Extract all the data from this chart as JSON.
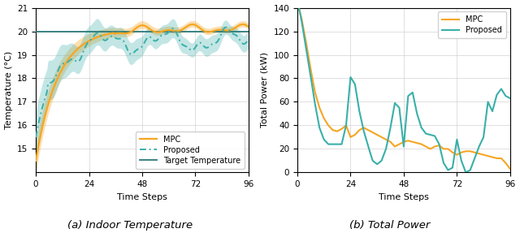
{
  "left_title": "(a) Indoor Temperature",
  "right_title": "(b) Total Power",
  "left_xlabel": "Time Steps",
  "left_ylabel": "Temperature (°C)",
  "right_xlabel": "Time Steps",
  "right_ylabel": "Total Power (kW)",
  "xticks": [
    0,
    24,
    48,
    72,
    96
  ],
  "left_ylim": [
    14,
    21
  ],
  "right_ylim": [
    0,
    140
  ],
  "left_yticks": [
    15,
    16,
    17,
    18,
    19,
    20,
    21
  ],
  "right_yticks": [
    0,
    20,
    40,
    60,
    80,
    100,
    120,
    140
  ],
  "target_temp": 20.0,
  "mpc_color": "#f5a623",
  "proposed_color": "#3aafa9",
  "target_color": "#2b7a78",
  "mpc_fill_alpha": 0.35,
  "prop_fill_alpha": 0.3,
  "n_points": 193
}
